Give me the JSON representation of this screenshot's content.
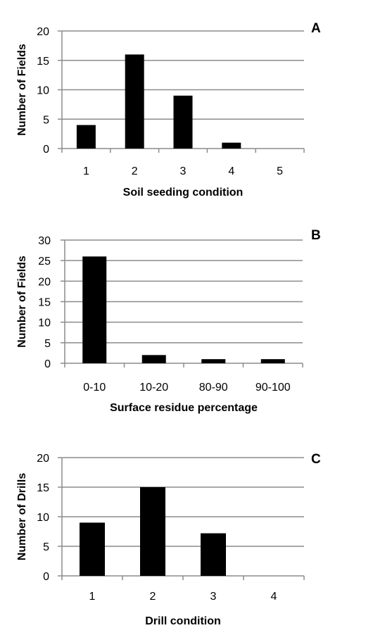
{
  "colors": {
    "bar": "#000000",
    "grid": "#8c8c8c",
    "text": "#000000"
  },
  "chart_data": [
    {
      "panel": "A",
      "type": "bar",
      "categories": [
        "1",
        "2",
        "3",
        "4",
        "5"
      ],
      "values": [
        4,
        16,
        9,
        1,
        0
      ],
      "title": "",
      "xlabel": "Soil seeding condition",
      "ylabel": "Number of Fields",
      "ylim": [
        0,
        20
      ],
      "yticks": [
        0,
        5,
        10,
        15,
        20
      ],
      "ytick_labels": [
        "0",
        "5",
        "10",
        "15",
        "20"
      ],
      "grid": true,
      "legend": "none"
    },
    {
      "panel": "B",
      "type": "bar",
      "categories": [
        "0-10",
        "10-20",
        "80-90",
        "90-100"
      ],
      "values": [
        26,
        2,
        1,
        1
      ],
      "title": "",
      "xlabel": "Surface residue percentage",
      "ylabel": "Number of Fields",
      "ylim": [
        0,
        30
      ],
      "yticks": [
        0,
        5,
        10,
        15,
        20,
        25,
        30
      ],
      "ytick_labels": [
        "0",
        "5",
        "10",
        "15",
        "20",
        "25",
        "30"
      ],
      "grid": true,
      "legend": "none"
    },
    {
      "panel": "C",
      "type": "bar",
      "categories": [
        "1",
        "2",
        "3",
        "4"
      ],
      "values": [
        9,
        15,
        7.2,
        0
      ],
      "title": "",
      "xlabel": "Drill condition",
      "ylabel": "Number of Drills",
      "ylim": [
        0,
        20
      ],
      "yticks": [
        0,
        5,
        10,
        15,
        20
      ],
      "ytick_labels": [
        "0",
        "5",
        "10",
        "15",
        "20"
      ],
      "grid": true,
      "legend": "none"
    }
  ]
}
